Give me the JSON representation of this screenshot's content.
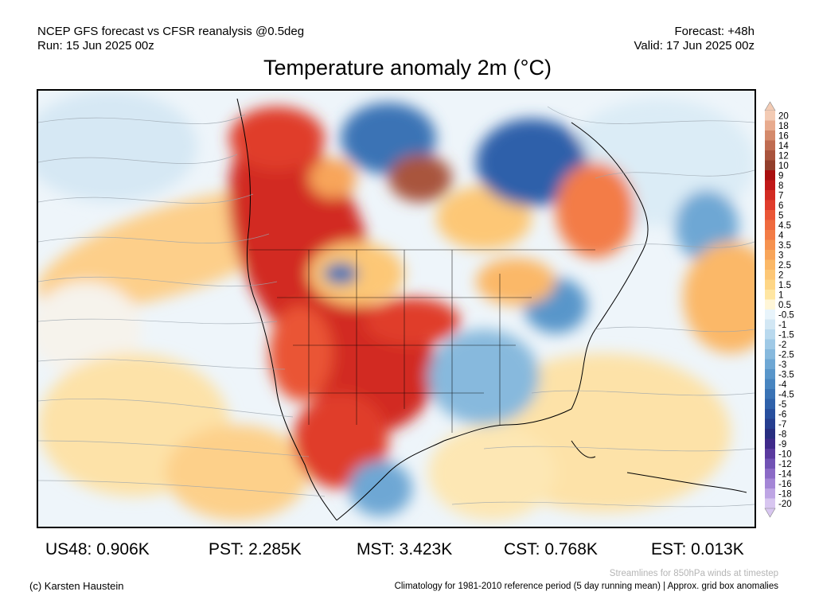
{
  "header": {
    "line1_left": "NCEP GFS forecast vs CFSR reanalysis @0.5deg",
    "line2_left": "Run: 15 Jun 2025 00z",
    "line1_right": "Forecast: +48h",
    "line2_right": "Valid: 17 Jun 2025 00z"
  },
  "title": "Temperature anomaly 2m (°C)",
  "colorbar": {
    "labels": [
      "20",
      "18",
      "16",
      "14",
      "12",
      "10",
      "9",
      "8",
      "7",
      "6",
      "5",
      "4.5",
      "4",
      "3.5",
      "3",
      "2.5",
      "2",
      "1.5",
      "1",
      "0.5",
      "-0.5",
      "-1",
      "-1.5",
      "-2",
      "-2.5",
      "-3",
      "-3.5",
      "-4",
      "-4.5",
      "-5",
      "-6",
      "-7",
      "-8",
      "-9",
      "-10",
      "-12",
      "-14",
      "-16",
      "-18",
      "-20"
    ],
    "colors": [
      "#f3cbb4",
      "#e8ab8e",
      "#d48a6b",
      "#bf6c51",
      "#a9543d",
      "#923f2c",
      "#a80f0f",
      "#c01818",
      "#d22b22",
      "#e03c2c",
      "#ea5535",
      "#ef6a3e",
      "#f37c46",
      "#f6924f",
      "#f8a55a",
      "#fbb867",
      "#fdc776",
      "#fed686",
      "#ffe6a2",
      "#fff6d8",
      "#e8f4fb",
      "#d2e7f4",
      "#b9d9ee",
      "#9fc9e6",
      "#87b9dd",
      "#6ea7d4",
      "#5996ca",
      "#4885c0",
      "#3a73b5",
      "#2f61aa",
      "#284f9e",
      "#263e8f",
      "#282e80",
      "#3f2a8a",
      "#5a3a9e",
      "#7152b4",
      "#8b6ac6",
      "#a486d6",
      "#bea5e4",
      "#d8c6f0"
    ]
  },
  "stats": {
    "us48": "US48: 0.906K",
    "pst": "PST: 2.285K",
    "mst": "MST: 3.423K",
    "cst": "CST: 0.768K",
    "est": "EST: 0.013K"
  },
  "footer": {
    "credit": "(c) Karsten Haustein",
    "streamlines": "Streamlines for 850hPa winds at timestep",
    "climatology": "Climatology for 1981-2010 reference period (5 day running mean) | Approx. grid box anomalies"
  }
}
